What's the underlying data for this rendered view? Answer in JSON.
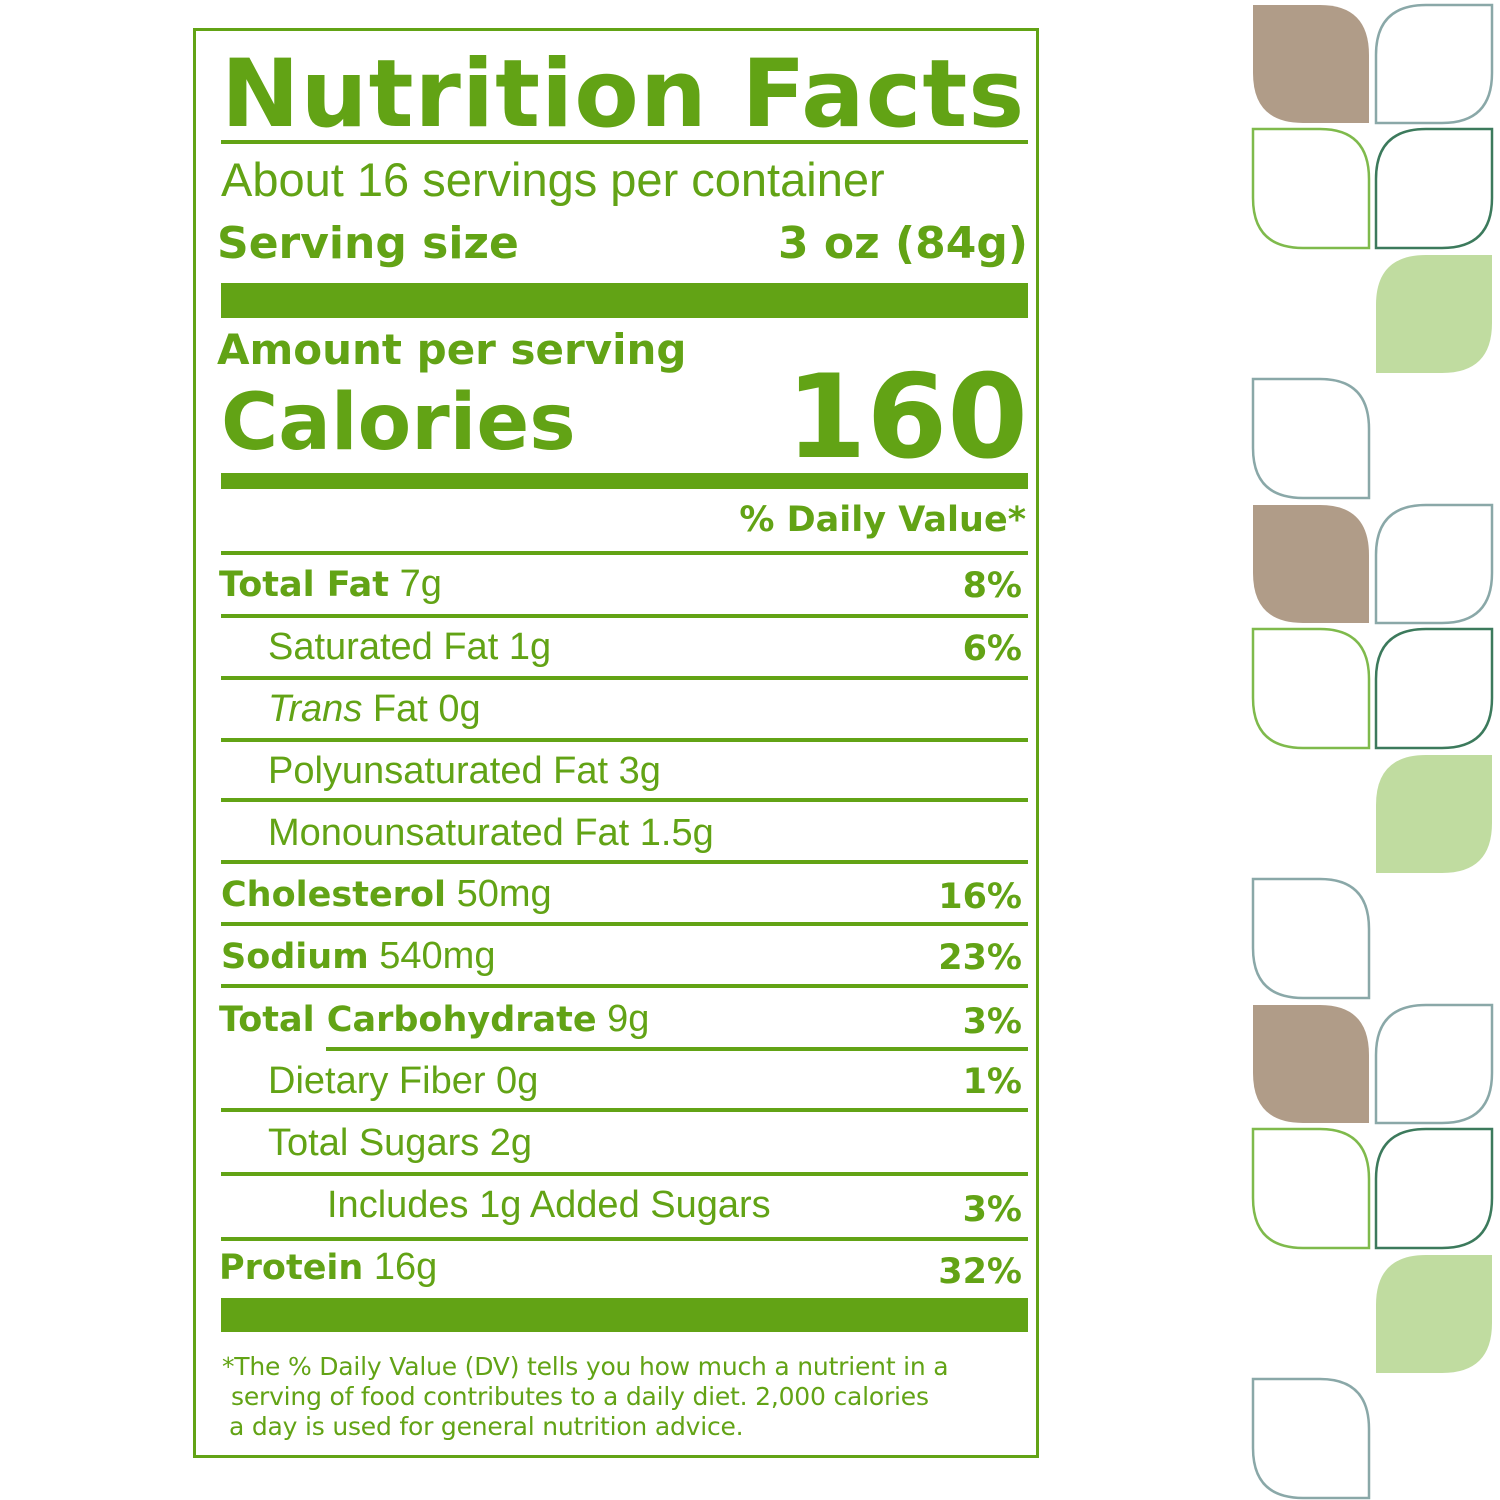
{
  "title": "Nutrition Facts",
  "servings_per_container": "About 16 servings per container",
  "serving_size": {
    "label": "Serving size",
    "value": "3 oz (84g)"
  },
  "amount_per_serving": "Amount per serving",
  "calories": {
    "label": "Calories",
    "value": "160"
  },
  "daily_value_header": "% Daily Value*",
  "nutrients": [
    {
      "name": "Total Fat",
      "amount": "7g",
      "dv": "8%"
    },
    {
      "name": "Saturated Fat",
      "amount": "1g",
      "dv": "6%"
    },
    {
      "name": "Trans",
      "suffix": "Fat 0g",
      "dv": ""
    },
    {
      "name": "Polyunsaturated Fat 3g",
      "dv": ""
    },
    {
      "name": "Monounsaturated Fat 1.5g",
      "dv": ""
    },
    {
      "name": "Cholesterol",
      "amount": "50mg",
      "dv": "16%"
    },
    {
      "name": "Sodium",
      "amount": "540mg",
      "dv": "23%"
    },
    {
      "name": "Total Carbohydrate",
      "amount": "9g",
      "dv": "3%"
    },
    {
      "name": "Dietary Fiber 0g",
      "dv": "1%"
    },
    {
      "name": "Total Sugars 2g",
      "dv": ""
    },
    {
      "name": "Includes 1g Added Sugars",
      "dv": "3%"
    },
    {
      "name": "Protein",
      "amount": "16g",
      "dv": "32%"
    }
  ],
  "footnote": [
    "*The % Daily Value (DV) tells you how much a nutrient in a",
    "serving of food contributes to a daily diet. 2,000 calories",
    "a day is used for general nutrition advice."
  ],
  "colors": {
    "label_green": "#62a315",
    "leaf_brown": "#b09c88",
    "leaf_light_green": "#c0dca0",
    "leaf_outline_teal": "#8aa8a8",
    "leaf_outline_green": "#7fba4c",
    "leaf_outline_dark": "#3c7a5c"
  }
}
